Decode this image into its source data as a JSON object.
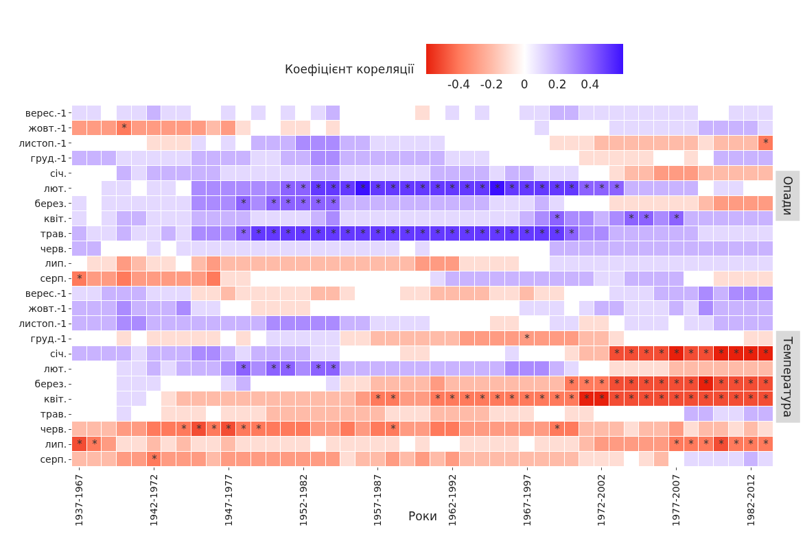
{
  "chart_data": {
    "type": "heatmap",
    "xlabel": "Роки",
    "clabel": "Коефіцієнт кореляції",
    "clim": [
      -0.6,
      0.6
    ],
    "cticks": [
      -0.4,
      -0.2,
      0,
      0.2,
      0.4
    ],
    "annotations": [
      "Опади",
      "Температура"
    ],
    "categories": [
      "1937-1967",
      null,
      null,
      null,
      null,
      "1942-1972",
      null,
      null,
      null,
      null,
      "1947-1977",
      null,
      null,
      null,
      null,
      "1952-1982",
      null,
      null,
      null,
      null,
      "1957-1987",
      null,
      null,
      null,
      null,
      "1962-1992",
      null,
      null,
      null,
      null,
      "1967-1997",
      null,
      null,
      null,
      null,
      "1972-2002",
      null,
      null,
      null,
      null,
      "1977-2007",
      null,
      null,
      null,
      null,
      "1982-2012",
      null
    ],
    "y_categories": [
      "верес.-1",
      "жовт.-1",
      "листоп.-1",
      "груд.-1",
      "січ.",
      "лют.",
      "берез.",
      "квіт.",
      "трав.",
      "черв.",
      "лип.",
      "серп.",
      "верес.-1",
      "жовт.-1",
      "листоп.-1",
      "груд.-1",
      "січ.",
      "лют.",
      "берез.",
      "квіт.",
      "трав.",
      "черв.",
      "лип.",
      "серп."
    ],
    "cells": [
      [
        0.1,
        0.1,
        0,
        0.1,
        0.1,
        0.2,
        0.1,
        0.1,
        0,
        0,
        0.1,
        0,
        0.1,
        0,
        0.1,
        0,
        0.1,
        0.2,
        0,
        0,
        0,
        0,
        0,
        -0.1,
        0,
        0.1,
        0,
        0.1,
        0,
        0,
        0.1,
        0.1,
        0.2,
        0.2,
        0.1,
        0.1,
        0.1,
        0.1,
        0.1,
        0.1,
        0.1,
        0.1,
        0,
        0,
        0.1,
        0.1,
        0.1
      ],
      [
        -0.3,
        -0.3,
        -0.3,
        -0.4,
        -0.3,
        -0.3,
        -0.3,
        -0.3,
        -0.3,
        -0.2,
        -0.3,
        -0.1,
        0,
        0,
        -0.1,
        -0.1,
        0,
        -0.1,
        0,
        0,
        0,
        0,
        0,
        0,
        0,
        0,
        0,
        0,
        0,
        0,
        0,
        0.1,
        0,
        0,
        0,
        0,
        0.1,
        0.1,
        0.1,
        0.1,
        0.1,
        0.1,
        0.2,
        0.2,
        0.2,
        0.2,
        0.1
      ],
      [
        0,
        0,
        0,
        0,
        0,
        -0.1,
        -0.1,
        -0.1,
        0.1,
        0,
        0.1,
        0,
        0.2,
        0.2,
        0.2,
        0.3,
        0.3,
        0.3,
        0.2,
        0.2,
        0.1,
        0.1,
        0.1,
        0.1,
        0.1,
        0,
        0,
        0,
        0,
        0,
        0,
        0,
        -0.1,
        -0.1,
        -0.1,
        -0.2,
        -0.2,
        -0.2,
        -0.2,
        -0.2,
        -0.2,
        -0.2,
        -0.1,
        -0.2,
        -0.2,
        -0.2,
        -0.4
      ],
      [
        0.2,
        0.2,
        0.2,
        0.1,
        0.1,
        0.1,
        0.1,
        0.1,
        0.2,
        0.2,
        0.2,
        0.2,
        0.1,
        0.1,
        0.2,
        0.2,
        0.3,
        0.3,
        0.2,
        0.2,
        0.2,
        0.2,
        0.2,
        0.2,
        0.2,
        0.1,
        0.1,
        0.1,
        0,
        0,
        0,
        0,
        0,
        0,
        -0.1,
        -0.1,
        -0.1,
        -0.1,
        -0.1,
        0,
        0,
        -0.1,
        0,
        0.2,
        0.2,
        0.2,
        0.2
      ],
      [
        0,
        0,
        0,
        0.2,
        0.1,
        0.2,
        0.2,
        0.2,
        0.2,
        0.2,
        0.1,
        0.1,
        0.1,
        0.1,
        0.1,
        0.1,
        0.2,
        0.2,
        0.1,
        0.1,
        0.1,
        0.1,
        0.1,
        0.1,
        0.2,
        0.2,
        0.2,
        0.2,
        0.1,
        0.2,
        0.2,
        0.1,
        0.1,
        0.1,
        0,
        0,
        -0.1,
        -0.2,
        -0.2,
        -0.3,
        -0.3,
        -0.3,
        -0.2,
        -0.2,
        -0.2,
        -0.2,
        -0.2
      ],
      [
        0,
        0,
        0.1,
        0.1,
        0,
        0.1,
        0.1,
        0,
        0.3,
        0.3,
        0.3,
        0.3,
        0.3,
        0.3,
        0.4,
        0.4,
        0.5,
        0.5,
        0.5,
        0.6,
        0.5,
        0.5,
        0.5,
        0.5,
        0.5,
        0.5,
        0.5,
        0.5,
        0.6,
        0.5,
        0.5,
        0.5,
        0.5,
        0.5,
        0.4,
        0.4,
        0.4,
        0.2,
        0.2,
        0.2,
        0.2,
        0.2,
        0,
        0.1,
        0.1,
        0,
        0
      ],
      [
        0.1,
        0,
        0.1,
        0.1,
        0.1,
        0.1,
        0.1,
        0.1,
        0.3,
        0.3,
        0.3,
        0.4,
        0.3,
        0.4,
        0.4,
        0.4,
        0.4,
        0.4,
        0.2,
        0.2,
        0.2,
        0.2,
        0.2,
        0.2,
        0.2,
        0.2,
        0.2,
        0.2,
        0.1,
        0.1,
        0.1,
        0.2,
        0.1,
        0,
        0,
        0,
        -0.1,
        -0.1,
        -0.1,
        -0.1,
        -0.1,
        -0.1,
        -0.2,
        -0.3,
        -0.3,
        -0.3,
        -0.3
      ],
      [
        0.1,
        0,
        0.1,
        0.2,
        0.2,
        0.1,
        0.1,
        0.1,
        0.2,
        0.2,
        0.2,
        0.2,
        0.1,
        0.1,
        0.1,
        0.1,
        0.2,
        0.3,
        0.1,
        0.1,
        0.1,
        0.1,
        0.1,
        0.1,
        0.1,
        0.1,
        0.1,
        0.1,
        0.1,
        0.1,
        0.2,
        0.3,
        0.4,
        0.3,
        0.3,
        0.2,
        0.3,
        0.4,
        0.4,
        0.3,
        0.4,
        0.2,
        0.2,
        0.2,
        0.2,
        0.2,
        0.2
      ],
      [
        0.2,
        0.1,
        0.1,
        0.2,
        0.1,
        0.1,
        0.2,
        0.1,
        0.3,
        0.3,
        0.3,
        0.4,
        0.5,
        0.5,
        0.5,
        0.5,
        0.5,
        0.5,
        0.5,
        0.5,
        0.5,
        0.5,
        0.5,
        0.5,
        0.5,
        0.5,
        0.5,
        0.5,
        0.5,
        0.5,
        0.5,
        0.5,
        0.5,
        0.4,
        0.3,
        0.3,
        0.2,
        0.2,
        0.2,
        0.2,
        0.2,
        0.2,
        0.1,
        0.1,
        0.1,
        0.1,
        0.1
      ],
      [
        0.2,
        0.2,
        0,
        0,
        0,
        0.1,
        0,
        0.1,
        0.1,
        0.1,
        0.1,
        0.1,
        0.1,
        0.1,
        0.1,
        0.1,
        0.1,
        0.1,
        0.1,
        0.1,
        0.1,
        0.1,
        0,
        0.1,
        0,
        0,
        0,
        0,
        0,
        0,
        0,
        0,
        0.2,
        0.2,
        0.2,
        0.2,
        0.2,
        0.2,
        0.2,
        0.2,
        0.2,
        0.2,
        0.2,
        0.2,
        0.2,
        0.2,
        0.2
      ],
      [
        0,
        -0.1,
        -0.1,
        -0.3,
        -0.2,
        -0.1,
        -0.1,
        0,
        -0.2,
        -0.3,
        -0.2,
        -0.2,
        -0.2,
        -0.2,
        -0.2,
        -0.2,
        -0.2,
        -0.2,
        -0.2,
        -0.2,
        -0.2,
        -0.2,
        -0.2,
        -0.3,
        -0.3,
        -0.3,
        -0.1,
        -0.1,
        -0.1,
        -0.1,
        0,
        0,
        0.1,
        0.1,
        0.1,
        0.1,
        0.1,
        0.1,
        0.1,
        0.1,
        0.1,
        0.1,
        0.1,
        0.1,
        0.1,
        0.1,
        0.1
      ],
      [
        -0.4,
        -0.3,
        -0.3,
        -0.4,
        -0.3,
        -0.3,
        -0.3,
        -0.3,
        -0.3,
        -0.4,
        -0.1,
        -0.1,
        0,
        0,
        0,
        0,
        0,
        0,
        0,
        0,
        0,
        0,
        0,
        0,
        0.1,
        0.2,
        0.2,
        0.2,
        0.2,
        0.2,
        0.2,
        0.2,
        0.2,
        0.2,
        0.2,
        0.1,
        0.1,
        0.2,
        0.2,
        0.2,
        0.2,
        0,
        0,
        -0.1,
        -0.1,
        -0.1,
        -0.1
      ],
      [
        0.1,
        0.1,
        0.2,
        0.2,
        0.2,
        0.1,
        0.1,
        0.1,
        -0.1,
        -0.1,
        -0.2,
        -0.1,
        -0.1,
        -0.1,
        -0.1,
        -0.1,
        -0.2,
        -0.2,
        -0.1,
        0,
        0,
        0,
        -0.1,
        -0.1,
        -0.2,
        -0.2,
        -0.2,
        -0.2,
        -0.1,
        -0.1,
        -0.2,
        -0.1,
        -0.1,
        0,
        0,
        0,
        0.1,
        0.1,
        0.1,
        0.2,
        0.2,
        0.2,
        0.3,
        0.2,
        0.3,
        0.3,
        0.3
      ],
      [
        0.2,
        0.2,
        0.2,
        0.3,
        0.2,
        0.2,
        0.2,
        0.3,
        0.1,
        0.1,
        0,
        0,
        -0.1,
        -0.1,
        -0.1,
        -0.1,
        0,
        0,
        0,
        0,
        0,
        0,
        0,
        0,
        0,
        0,
        0,
        0,
        0,
        0,
        0.1,
        0.1,
        0.1,
        0,
        0.1,
        0.2,
        0.2,
        0.1,
        0.1,
        0.1,
        0.2,
        0.1,
        0.3,
        0.2,
        0.2,
        0.2,
        0.2
      ],
      [
        0.2,
        0.2,
        0.2,
        0.3,
        0.3,
        0.2,
        0.2,
        0.2,
        0.2,
        0.2,
        0.2,
        0.2,
        0.2,
        0.3,
        0.3,
        0.3,
        0.3,
        0.3,
        0.2,
        0.2,
        0.1,
        0.1,
        0.1,
        0.1,
        0,
        0,
        0,
        0,
        -0.1,
        -0.1,
        0,
        0,
        0.1,
        0.1,
        -0.1,
        -0.1,
        0,
        0.1,
        0.1,
        0.1,
        0,
        0.1,
        0.1,
        0.2,
        0.2,
        0.2,
        0.2
      ],
      [
        0,
        0,
        0,
        -0.1,
        0,
        -0.1,
        -0.1,
        -0.1,
        -0.1,
        -0.1,
        0,
        -0.1,
        0,
        0.1,
        0.1,
        0.1,
        0.1,
        0.1,
        -0.1,
        -0.1,
        -0.2,
        -0.2,
        -0.2,
        -0.2,
        -0.2,
        -0.2,
        -0.3,
        -0.3,
        -0.3,
        -0.3,
        -0.3,
        -0.3,
        -0.3,
        -0.3,
        -0.2,
        -0.2,
        -0.1,
        0,
        0,
        0,
        0,
        0,
        0,
        0,
        0,
        -0.1,
        -0.1
      ],
      [
        0.2,
        0.2,
        0.2,
        0.2,
        0.1,
        0.2,
        0.2,
        0.2,
        0.3,
        0.3,
        0.2,
        0.1,
        0.2,
        0.2,
        0.2,
        0.2,
        0.1,
        0.1,
        0,
        0,
        0,
        0,
        -0.1,
        -0.1,
        0,
        0,
        0,
        0,
        0,
        0.1,
        0,
        0,
        0,
        -0.1,
        -0.2,
        -0.2,
        -0.5,
        -0.5,
        -0.5,
        -0.5,
        -0.6,
        -0.5,
        -0.5,
        -0.6,
        -0.6,
        -0.6,
        -0.6
      ],
      [
        0,
        0,
        0,
        0.1,
        0.1,
        0.2,
        0.1,
        0.2,
        0.2,
        0.2,
        0.3,
        0.4,
        0.3,
        0.4,
        0.4,
        0.3,
        0.4,
        0.4,
        0.2,
        0.2,
        0.2,
        0.2,
        0.2,
        0.2,
        0.2,
        0.2,
        0.2,
        0.2,
        0.2,
        0.3,
        0.3,
        0.3,
        0.2,
        0.1,
        0,
        0,
        -0.1,
        -0.1,
        -0.1,
        -0.1,
        -0.2,
        -0.2,
        -0.2,
        -0.2,
        -0.2,
        -0.2,
        -0.2
      ],
      [
        0,
        0,
        0,
        0.1,
        0.1,
        0.1,
        0,
        0,
        0,
        0,
        0.1,
        0.2,
        0,
        0,
        0,
        0,
        0,
        0.1,
        -0.1,
        -0.1,
        -0.2,
        -0.2,
        -0.2,
        -0.2,
        -0.3,
        -0.2,
        -0.2,
        -0.2,
        -0.2,
        -0.2,
        -0.2,
        -0.2,
        -0.2,
        -0.4,
        -0.4,
        -0.4,
        -0.5,
        -0.5,
        -0.5,
        -0.5,
        -0.5,
        -0.5,
        -0.6,
        -0.5,
        -0.5,
        -0.5,
        -0.5
      ],
      [
        0,
        0,
        0,
        0.1,
        0.1,
        0,
        -0.1,
        -0.2,
        -0.2,
        -0.2,
        -0.2,
        -0.2,
        -0.2,
        -0.2,
        -0.2,
        -0.2,
        -0.2,
        -0.2,
        -0.2,
        -0.3,
        -0.4,
        -0.4,
        -0.3,
        -0.3,
        -0.4,
        -0.4,
        -0.4,
        -0.4,
        -0.4,
        -0.4,
        -0.4,
        -0.4,
        -0.4,
        -0.4,
        -0.6,
        -0.6,
        -0.5,
        -0.5,
        -0.5,
        -0.5,
        -0.5,
        -0.5,
        -0.5,
        -0.5,
        -0.5,
        -0.5,
        -0.5
      ],
      [
        0,
        0,
        0,
        0.1,
        0,
        0,
        -0.1,
        -0.1,
        -0.1,
        0,
        -0.1,
        -0.1,
        -0.1,
        -0.2,
        -0.2,
        -0.2,
        -0.2,
        -0.2,
        -0.2,
        -0.2,
        -0.2,
        -0.1,
        -0.1,
        -0.1,
        -0.2,
        -0.2,
        -0.2,
        -0.2,
        -0.1,
        -0.1,
        -0.1,
        0,
        0,
        -0.1,
        -0.1,
        0,
        0,
        0,
        0,
        0,
        0,
        0.2,
        0.2,
        0.1,
        0.1,
        0.2,
        0.2
      ],
      [
        -0.2,
        -0.2,
        -0.2,
        -0.3,
        -0.3,
        -0.4,
        -0.4,
        -0.4,
        -0.5,
        -0.4,
        -0.5,
        -0.4,
        -0.4,
        -0.4,
        -0.4,
        -0.4,
        -0.3,
        -0.3,
        -0.4,
        -0.3,
        -0.4,
        -0.4,
        -0.3,
        -0.3,
        -0.4,
        -0.4,
        -0.3,
        -0.3,
        -0.3,
        -0.3,
        -0.3,
        -0.3,
        -0.4,
        -0.4,
        -0.2,
        -0.2,
        -0.2,
        -0.1,
        -0.2,
        -0.2,
        -0.3,
        -0.1,
        -0.2,
        -0.2,
        -0.1,
        -0.2,
        -0.1
      ],
      [
        -0.5,
        -0.4,
        -0.3,
        -0.1,
        -0.1,
        -0.2,
        -0.1,
        -0.2,
        -0.1,
        -0.1,
        -0.2,
        -0.1,
        -0.1,
        -0.1,
        -0.1,
        -0.1,
        0,
        -0.1,
        -0.1,
        -0.1,
        -0.1,
        -0.1,
        0,
        -0.1,
        0,
        0,
        -0.1,
        -0.1,
        -0.1,
        -0.1,
        0,
        -0.1,
        -0.1,
        -0.1,
        -0.2,
        -0.3,
        -0.3,
        -0.3,
        -0.3,
        -0.3,
        -0.4,
        -0.4,
        -0.4,
        -0.5,
        -0.4,
        -0.4,
        -0.4
      ],
      [
        -0.2,
        -0.2,
        -0.2,
        -0.3,
        -0.3,
        -0.4,
        -0.3,
        -0.3,
        -0.3,
        -0.2,
        -0.3,
        -0.3,
        -0.3,
        -0.3,
        -0.3,
        -0.3,
        -0.3,
        -0.3,
        -0.1,
        -0.2,
        -0.2,
        -0.3,
        -0.2,
        -0.3,
        -0.2,
        -0.3,
        -0.2,
        -0.2,
        -0.2,
        -0.2,
        -0.2,
        -0.2,
        -0.2,
        -0.2,
        -0.1,
        -0.1,
        -0.1,
        0,
        -0.1,
        -0.2,
        0,
        0.1,
        0.1,
        0.1,
        0.1,
        0.2,
        0.1
      ]
    ],
    "cell_labels": [
      [
        null,
        null,
        null,
        null,
        null,
        null,
        null,
        null,
        null,
        null,
        null,
        null,
        null,
        null,
        null,
        null,
        null,
        null,
        null,
        null,
        null,
        null,
        null,
        null,
        null,
        null,
        null,
        null,
        null,
        null,
        null,
        null,
        null,
        null,
        null,
        null,
        null,
        null,
        null,
        null,
        null,
        null,
        null,
        null,
        null,
        null,
        null
      ],
      [
        null,
        null,
        null,
        "*",
        null,
        null,
        null,
        null,
        null,
        null,
        null,
        null,
        null,
        null,
        null,
        null,
        null,
        null,
        null,
        null,
        null,
        null,
        null,
        null,
        null,
        null,
        null,
        null,
        null,
        null,
        null,
        null,
        null,
        null,
        null,
        null,
        null,
        null,
        null,
        null,
        null,
        null,
        null,
        null,
        null,
        null,
        null
      ],
      [
        null,
        null,
        null,
        null,
        null,
        null,
        null,
        null,
        null,
        null,
        null,
        null,
        null,
        null,
        null,
        null,
        null,
        null,
        null,
        null,
        null,
        null,
        null,
        null,
        null,
        null,
        null,
        null,
        null,
        null,
        null,
        null,
        null,
        null,
        null,
        null,
        null,
        null,
        null,
        null,
        null,
        null,
        null,
        null,
        null,
        null,
        "*"
      ],
      [
        null,
        null,
        null,
        null,
        null,
        null,
        null,
        null,
        null,
        null,
        null,
        null,
        null,
        null,
        null,
        null,
        null,
        null,
        null,
        null,
        null,
        null,
        null,
        null,
        null,
        null,
        null,
        null,
        null,
        null,
        null,
        null,
        null,
        null,
        null,
        null,
        null,
        null,
        null,
        null,
        null,
        null,
        null,
        null,
        null,
        null,
        null
      ],
      [
        null,
        null,
        null,
        null,
        null,
        null,
        null,
        null,
        null,
        null,
        null,
        null,
        null,
        null,
        null,
        null,
        null,
        null,
        null,
        null,
        null,
        null,
        null,
        null,
        null,
        null,
        null,
        null,
        null,
        null,
        null,
        null,
        null,
        null,
        null,
        null,
        null,
        null,
        null,
        null,
        null,
        null,
        null,
        null,
        null,
        null,
        null
      ],
      [
        null,
        null,
        null,
        null,
        null,
        null,
        null,
        null,
        null,
        null,
        null,
        null,
        null,
        null,
        "*",
        "*",
        "*",
        "*",
        "*",
        "*",
        "*",
        "*",
        "*",
        "*",
        "*",
        "*",
        "*",
        "*",
        "*",
        "*",
        "*",
        "*",
        "*",
        "*",
        "*",
        "*",
        "*",
        null,
        null,
        null,
        null,
        null,
        null,
        null,
        null,
        null,
        null
      ],
      [
        null,
        null,
        null,
        null,
        null,
        null,
        null,
        null,
        null,
        null,
        null,
        "*",
        null,
        "*",
        "*",
        "*",
        "*",
        "*",
        null,
        null,
        null,
        null,
        null,
        null,
        null,
        null,
        null,
        null,
        null,
        null,
        null,
        null,
        null,
        null,
        null,
        null,
        null,
        null,
        null,
        null,
        null,
        null,
        null,
        null,
        null,
        null,
        null
      ],
      [
        null,
        null,
        null,
        null,
        null,
        null,
        null,
        null,
        null,
        null,
        null,
        null,
        null,
        null,
        null,
        null,
        null,
        null,
        null,
        null,
        null,
        null,
        null,
        null,
        null,
        null,
        null,
        null,
        null,
        null,
        null,
        null,
        "*",
        null,
        null,
        null,
        null,
        "*",
        "*",
        null,
        "*",
        null,
        null,
        null,
        null,
        null,
        null
      ],
      [
        null,
        null,
        null,
        null,
        null,
        null,
        null,
        null,
        null,
        null,
        null,
        "*",
        "*",
        "*",
        "*",
        "*",
        "*",
        "*",
        "*",
        "*",
        "*",
        "*",
        "*",
        "*",
        "*",
        "*",
        "*",
        "*",
        "*",
        "*",
        "*",
        "*",
        "*",
        "*",
        null,
        null,
        null,
        null,
        null,
        null,
        null,
        null,
        null,
        null,
        null,
        null,
        null
      ],
      [
        null,
        null,
        null,
        null,
        null,
        null,
        null,
        null,
        null,
        null,
        null,
        null,
        null,
        null,
        null,
        null,
        null,
        null,
        null,
        null,
        null,
        null,
        null,
        null,
        null,
        null,
        null,
        null,
        null,
        null,
        null,
        null,
        null,
        null,
        null,
        null,
        null,
        null,
        null,
        null,
        null,
        null,
        null,
        null,
        null,
        null,
        null
      ],
      [
        null,
        null,
        null,
        null,
        null,
        null,
        null,
        null,
        null,
        null,
        null,
        null,
        null,
        null,
        null,
        null,
        null,
        null,
        null,
        null,
        null,
        null,
        null,
        null,
        null,
        null,
        null,
        null,
        null,
        null,
        null,
        null,
        null,
        null,
        null,
        null,
        null,
        null,
        null,
        null,
        null,
        null,
        null,
        null,
        null,
        null,
        null
      ],
      [
        "*",
        null,
        null,
        null,
        null,
        null,
        null,
        null,
        null,
        null,
        null,
        null,
        null,
        null,
        null,
        null,
        null,
        null,
        null,
        null,
        null,
        null,
        null,
        null,
        null,
        null,
        null,
        null,
        null,
        null,
        null,
        null,
        null,
        null,
        null,
        null,
        null,
        null,
        null,
        null,
        null,
        null,
        null,
        null,
        null,
        null,
        null
      ],
      [
        null,
        null,
        null,
        null,
        null,
        null,
        null,
        null,
        null,
        null,
        null,
        null,
        null,
        null,
        null,
        null,
        null,
        null,
        null,
        null,
        null,
        null,
        null,
        null,
        null,
        null,
        null,
        null,
        null,
        null,
        null,
        null,
        null,
        null,
        null,
        null,
        null,
        null,
        null,
        null,
        null,
        null,
        null,
        null,
        null,
        null,
        null
      ],
      [
        null,
        null,
        null,
        null,
        null,
        null,
        null,
        null,
        null,
        null,
        null,
        null,
        null,
        null,
        null,
        null,
        null,
        null,
        null,
        null,
        null,
        null,
        null,
        null,
        null,
        null,
        null,
        null,
        null,
        null,
        null,
        null,
        null,
        null,
        null,
        null,
        null,
        null,
        null,
        null,
        null,
        null,
        null,
        null,
        null,
        null,
        null
      ],
      [
        null,
        null,
        null,
        null,
        null,
        null,
        null,
        null,
        null,
        null,
        null,
        null,
        null,
        null,
        null,
        null,
        null,
        null,
        null,
        null,
        null,
        null,
        null,
        null,
        null,
        null,
        null,
        null,
        null,
        null,
        null,
        null,
        null,
        null,
        null,
        null,
        null,
        null,
        null,
        null,
        null,
        null,
        null,
        null,
        null,
        null,
        null
      ],
      [
        null,
        null,
        null,
        null,
        null,
        null,
        null,
        null,
        null,
        null,
        null,
        null,
        null,
        null,
        null,
        null,
        null,
        null,
        null,
        null,
        null,
        null,
        null,
        null,
        null,
        null,
        null,
        null,
        null,
        null,
        "*",
        null,
        null,
        null,
        null,
        null,
        null,
        null,
        null,
        null,
        null,
        null,
        null,
        null,
        null,
        null,
        null
      ],
      [
        null,
        null,
        null,
        null,
        null,
        null,
        null,
        null,
        null,
        null,
        null,
        null,
        null,
        null,
        null,
        null,
        null,
        null,
        null,
        null,
        null,
        null,
        null,
        null,
        null,
        null,
        null,
        null,
        null,
        null,
        null,
        null,
        null,
        null,
        null,
        null,
        "*",
        "*",
        "*",
        "*",
        "*",
        "*",
        "*",
        "*",
        "*",
        "*",
        "*"
      ],
      [
        null,
        null,
        null,
        null,
        null,
        null,
        null,
        null,
        null,
        null,
        null,
        "*",
        null,
        "*",
        "*",
        null,
        "*",
        "*",
        null,
        null,
        null,
        null,
        null,
        null,
        null,
        null,
        null,
        null,
        null,
        null,
        null,
        null,
        null,
        null,
        null,
        null,
        null,
        null,
        null,
        null,
        null,
        null,
        null,
        null,
        null,
        null,
        null
      ],
      [
        null,
        null,
        null,
        null,
        null,
        null,
        null,
        null,
        null,
        null,
        null,
        null,
        null,
        null,
        null,
        null,
        null,
        null,
        null,
        null,
        null,
        null,
        null,
        null,
        null,
        null,
        null,
        null,
        null,
        null,
        null,
        null,
        null,
        "*",
        "*",
        "*",
        "*",
        "*",
        "*",
        "*",
        "*",
        "*",
        "*",
        "*",
        "*",
        "*",
        "*"
      ],
      [
        null,
        null,
        null,
        null,
        null,
        null,
        null,
        null,
        null,
        null,
        null,
        null,
        null,
        null,
        null,
        null,
        null,
        null,
        null,
        null,
        "*",
        "*",
        null,
        null,
        "*",
        "*",
        "*",
        "*",
        "*",
        "*",
        "*",
        "*",
        "*",
        "*",
        "*",
        "*",
        "*",
        "*",
        "*",
        "*",
        "*",
        "*",
        "*",
        "*",
        "*",
        "*",
        "*"
      ],
      [
        null,
        null,
        null,
        null,
        null,
        null,
        null,
        null,
        null,
        null,
        null,
        null,
        null,
        null,
        null,
        null,
        null,
        null,
        null,
        null,
        null,
        null,
        null,
        null,
        null,
        null,
        null,
        null,
        null,
        null,
        null,
        null,
        null,
        null,
        null,
        null,
        null,
        null,
        null,
        null,
        null,
        null,
        null,
        null,
        null,
        null,
        null
      ],
      [
        null,
        null,
        null,
        null,
        null,
        null,
        null,
        "*",
        "*",
        "*",
        "*",
        "*",
        "*",
        null,
        null,
        null,
        null,
        null,
        null,
        null,
        null,
        "*",
        null,
        null,
        null,
        null,
        null,
        null,
        null,
        null,
        null,
        null,
        "*",
        null,
        null,
        null,
        null,
        null,
        null,
        null,
        null,
        null,
        null,
        null,
        null,
        null,
        null
      ],
      [
        "*",
        "*",
        null,
        null,
        null,
        null,
        null,
        null,
        null,
        null,
        null,
        null,
        null,
        null,
        null,
        null,
        null,
        null,
        null,
        null,
        null,
        null,
        null,
        null,
        null,
        null,
        null,
        null,
        null,
        null,
        null,
        null,
        null,
        null,
        null,
        null,
        null,
        null,
        null,
        null,
        "*",
        "*",
        "*",
        "*",
        "*",
        "*",
        "*"
      ],
      [
        null,
        null,
        null,
        null,
        null,
        "*",
        null,
        null,
        null,
        null,
        null,
        null,
        null,
        null,
        null,
        null,
        null,
        null,
        null,
        null,
        null,
        null,
        null,
        null,
        null,
        null,
        null,
        null,
        null,
        null,
        null,
        null,
        null,
        null,
        null,
        null,
        null,
        null,
        null,
        null,
        null,
        null,
        null,
        null,
        null,
        null,
        null
      ]
    ]
  }
}
